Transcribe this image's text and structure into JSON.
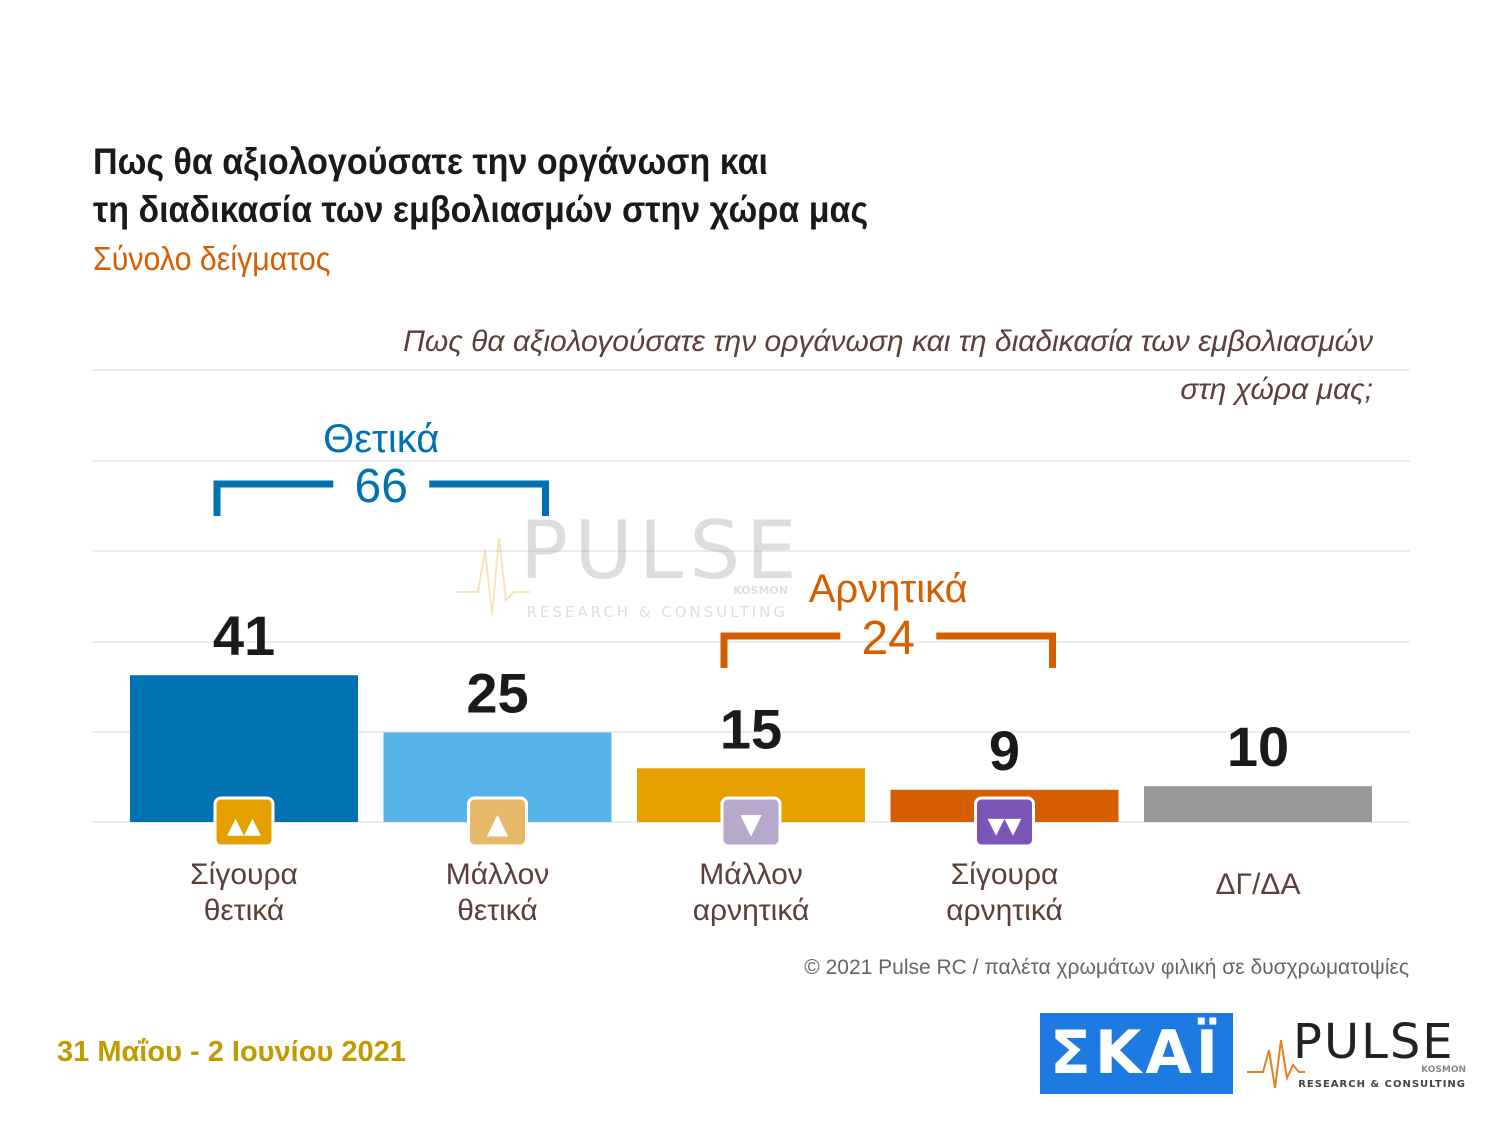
{
  "title_line1": "Πως θα αξιολογούσατε την οργάνωση και",
  "title_line2": "τη διαδικασία των εμβολιασμών στην χώρα μας",
  "subtitle": "Σύνολο δείγματος",
  "question_line1": "Πως θα αξιολογούσατε την οργάνωση και τη διαδικασία των εμβολιασμών",
  "question_line2": "στη χώρα μας;",
  "credit": "© 2021 Pulse RC   /   παλέτα χρωμάτων φιλική σε δυσχρωματοψίες",
  "date": "31 Μαΐου - 2 Ιουνίου 2021",
  "watermark": {
    "brand": "PULSE",
    "sub": "KOSMON",
    "tagline": "RESEARCH & CONSULTING"
  },
  "logos": {
    "skai": "ΣΚΑΪ",
    "pulse": "PULSE",
    "pulse_sub": "KOSMON",
    "pulse_tagline": "RESEARCH & CONSULTING"
  },
  "colors": {
    "positive_group": "#0072b2",
    "negative_group": "#d55e00",
    "title": "#1a1a1a",
    "date": "#c19a00"
  },
  "chart_data": {
    "type": "bar",
    "categories": [
      [
        "Σίγουρα",
        "θετικά"
      ],
      [
        "Μάλλον",
        "θετικά"
      ],
      [
        "Μάλλον",
        "αρνητικά"
      ],
      [
        "Σίγουρα",
        "αρνητικά"
      ],
      [
        "ΔΓ/ΔΑ"
      ]
    ],
    "values": [
      41,
      25,
      15,
      9,
      10
    ],
    "colors": [
      "#0072b2",
      "#56b4e9",
      "#e69f00",
      "#d55e00",
      "#999999"
    ],
    "icons": [
      "double-thumbs-up-icon",
      "thumb-up-icon",
      "thumb-down-icon",
      "double-thumbs-down-icon",
      null
    ],
    "icon_colors": [
      "#e69f00",
      "#e6b86a",
      "#b8a8cc",
      "#7b55b8",
      null
    ],
    "ylim": [
      0,
      45
    ],
    "grid": true,
    "groups": [
      {
        "label": "Θετικά",
        "value": 66,
        "color": "#0072b2",
        "span": [
          0,
          1
        ]
      },
      {
        "label": "Αρνητικά",
        "value": 24,
        "color": "#d55e00",
        "span": [
          2,
          3
        ]
      }
    ]
  }
}
